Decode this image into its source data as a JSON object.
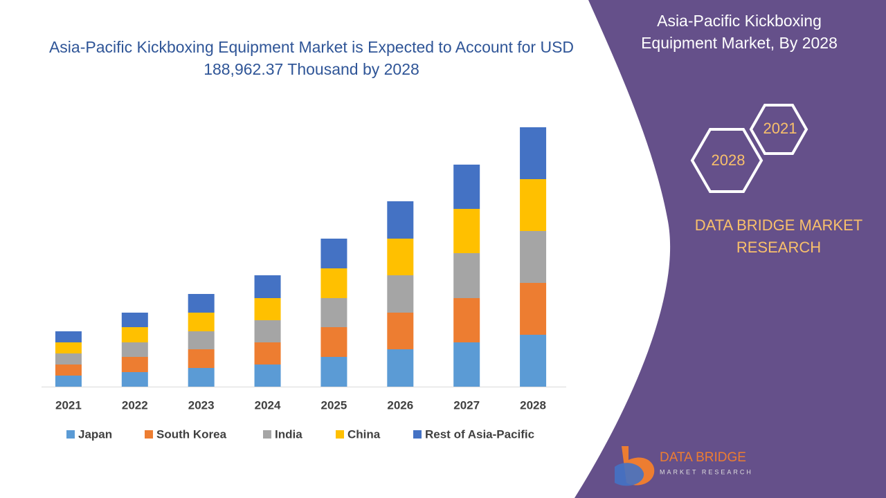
{
  "chart_data": {
    "type": "stacked-bar",
    "title": "Asia-Pacific Kickboxing Equipment Market is Expected to Account for USD 188,962.37 Thousand by 2028",
    "categories": [
      "2021",
      "2022",
      "2023",
      "2024",
      "2025",
      "2026",
      "2027",
      "2028"
    ],
    "series": [
      {
        "name": "Japan",
        "color": "#5b9bd5",
        "values": [
          8000,
          10500,
          13500,
          16000,
          21500,
          27000,
          32000,
          37500
        ]
      },
      {
        "name": "South Korea",
        "color": "#ed7d31",
        "values": [
          8000,
          11000,
          13500,
          16000,
          21500,
          26500,
          32000,
          37500
        ]
      },
      {
        "name": "India",
        "color": "#a5a5a5",
        "values": [
          8000,
          10500,
          13000,
          16000,
          21000,
          27000,
          32500,
          37500
        ]
      },
      {
        "name": "China",
        "color": "#ffc000",
        "values": [
          8000,
          11000,
          13500,
          16000,
          21500,
          26500,
          32000,
          37500
        ]
      },
      {
        "name": "Rest of Asia-Pacific",
        "color": "#4472c4",
        "values": [
          8000,
          10500,
          13500,
          16500,
          21500,
          27000,
          32000,
          37500
        ]
      }
    ],
    "legend": "bottom"
  },
  "side_panel": {
    "title": "Asia-Pacific Kickboxing Equipment Market, By 2028",
    "hex_start": "2021",
    "hex_end": "2028",
    "brand": "DATA BRIDGE MARKET RESEARCH",
    "logo_name": "DATA BRIDGE",
    "logo_sub": "MARKET RESEARCH"
  }
}
